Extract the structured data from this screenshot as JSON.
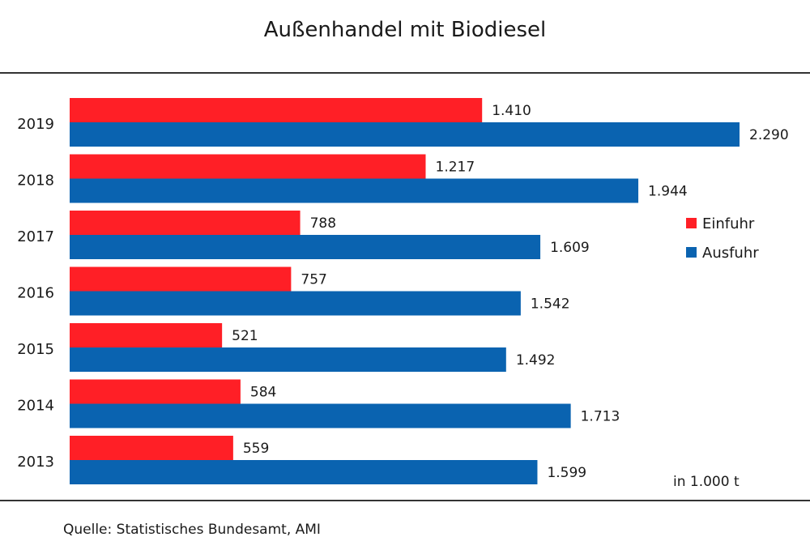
{
  "title": "Außenhandel mit Biodiesel",
  "source": "Quelle: Statistisches Bundesamt, AMI",
  "unit": "in 1.000  t",
  "colors": {
    "einfuhr": "#ff1f26",
    "ausfuhr": "#0a63b0"
  },
  "chart_data": {
    "type": "bar",
    "orientation": "horizontal",
    "categories": [
      "2019",
      "2018",
      "2017",
      "2016",
      "2015",
      "2014",
      "2013"
    ],
    "series": [
      {
        "name": "Einfuhr",
        "values": [
          1410,
          1217,
          788,
          757,
          521,
          584,
          559
        ],
        "labels": [
          "1.410",
          "1.217",
          "788",
          "757",
          "521",
          "584",
          "559"
        ]
      },
      {
        "name": "Ausfuhr",
        "values": [
          2290,
          1944,
          1609,
          1542,
          1492,
          1713,
          1599
        ],
        "labels": [
          "2.290",
          "1.944",
          "1.609",
          "1.542",
          "1.492",
          "1.713",
          "1.599"
        ]
      }
    ],
    "title": "Außenhandel mit Biodiesel",
    "xlabel": "",
    "ylabel": "",
    "xlim": [
      0,
      2290
    ],
    "grid": false,
    "legend": "right"
  }
}
